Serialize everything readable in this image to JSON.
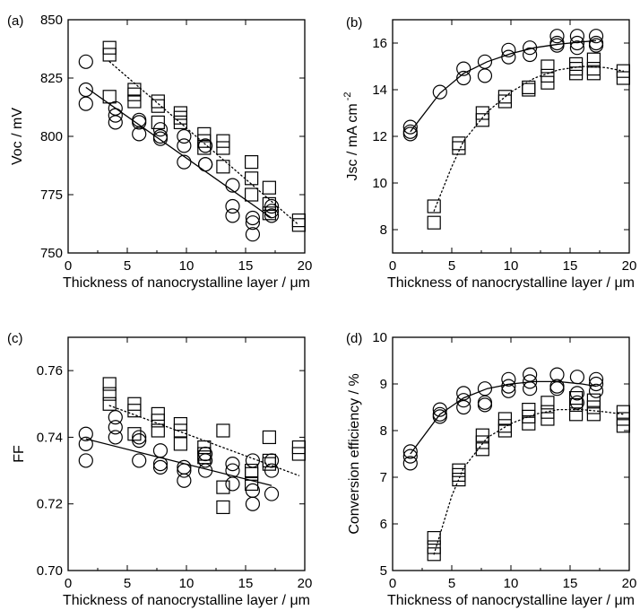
{
  "chart_data": [
    {
      "type": "scatter",
      "panel_label": "(a)",
      "xlabel": "Thickness of nanocrystalline layer / μm",
      "ylabel": "Voc / mV",
      "xlim": [
        0,
        20
      ],
      "ylim": [
        750,
        850
      ],
      "xticks": [
        0,
        5,
        10,
        15,
        20
      ],
      "yticks": [
        750,
        775,
        800,
        825,
        850
      ],
      "grid": false,
      "series": [
        {
          "marker": "circle",
          "points": [
            [
              1.5,
              832
            ],
            [
              1.5,
              820
            ],
            [
              1.5,
              814
            ],
            [
              4,
              812
            ],
            [
              4,
              809
            ],
            [
              4,
              806
            ],
            [
              6,
              807
            ],
            [
              6,
              806
            ],
            [
              6,
              801
            ],
            [
              7.8,
              803
            ],
            [
              7.8,
              800
            ],
            [
              7.8,
              799
            ],
            [
              9.8,
              800
            ],
            [
              9.8,
              796
            ],
            [
              9.8,
              789
            ],
            [
              11.6,
              796
            ],
            [
              11.6,
              788
            ],
            [
              11.6,
              788
            ],
            [
              13.9,
              779
            ],
            [
              13.9,
              770
            ],
            [
              13.9,
              766
            ],
            [
              15.6,
              765
            ],
            [
              15.6,
              763
            ],
            [
              15.6,
              758
            ],
            [
              17.2,
              770
            ],
            [
              17.2,
              768
            ],
            [
              17.2,
              766
            ]
          ]
        },
        {
          "marker": "square",
          "points": [
            [
              3.5,
              838
            ],
            [
              3.5,
              835
            ],
            [
              3.5,
              817
            ],
            [
              5.6,
              820
            ],
            [
              5.6,
              818
            ],
            [
              5.6,
              815
            ],
            [
              7.6,
              815
            ],
            [
              7.6,
              813
            ],
            [
              7.6,
              806
            ],
            [
              9.5,
              810
            ],
            [
              9.5,
              808
            ],
            [
              9.5,
              806
            ],
            [
              11.5,
              801
            ],
            [
              11.5,
              798
            ],
            [
              11.5,
              795
            ],
            [
              13.1,
              798
            ],
            [
              13.1,
              795
            ],
            [
              13.1,
              787
            ],
            [
              15.5,
              789
            ],
            [
              15.5,
              782
            ],
            [
              15.5,
              775
            ],
            [
              17,
              778
            ],
            [
              17,
              771
            ],
            [
              17,
              767
            ],
            [
              19.5,
              764
            ],
            [
              19.5,
              762
            ]
          ]
        }
      ],
      "fits": [
        {
          "style": "solid",
          "x": [
            1.5,
            17.2
          ],
          "y": [
            821,
            765
          ]
        },
        {
          "style": "dotted",
          "x": [
            3.5,
            19.5
          ],
          "y": [
            832,
            762
          ]
        }
      ]
    },
    {
      "type": "scatter",
      "panel_label": "(b)",
      "xlabel": "Thickness of nanocrystalline layer / μm",
      "ylabel": "Jsc / mA cm",
      "ylabel_sup": "-2",
      "xlim": [
        0,
        20
      ],
      "ylim": [
        7,
        17
      ],
      "xticks": [
        0,
        5,
        10,
        15,
        20
      ],
      "yticks": [
        8,
        10,
        12,
        14,
        16
      ],
      "grid": false,
      "series": [
        {
          "marker": "circle",
          "points": [
            [
              1.5,
              12.4
            ],
            [
              1.5,
              12.2
            ],
            [
              1.5,
              12.1
            ],
            [
              4,
              13.9
            ],
            [
              6,
              14.9
            ],
            [
              6,
              14.5
            ],
            [
              7.8,
              15.2
            ],
            [
              7.8,
              14.6
            ],
            [
              9.8,
              15.7
            ],
            [
              9.8,
              15.4
            ],
            [
              11.6,
              15.8
            ],
            [
              11.6,
              15.5
            ],
            [
              13.9,
              16.3
            ],
            [
              13.9,
              16.0
            ],
            [
              13.9,
              15.9
            ],
            [
              15.6,
              16.3
            ],
            [
              15.6,
              16.0
            ],
            [
              15.6,
              15.8
            ],
            [
              17.2,
              16.3
            ],
            [
              17.2,
              16.0
            ],
            [
              17.2,
              15.9
            ]
          ]
        },
        {
          "marker": "square",
          "points": [
            [
              3.5,
              9.0
            ],
            [
              3.5,
              8.3
            ],
            [
              5.6,
              11.7
            ],
            [
              5.6,
              11.5
            ],
            [
              7.6,
              13.0
            ],
            [
              7.6,
              12.7
            ],
            [
              9.5,
              13.7
            ],
            [
              9.5,
              13.5
            ],
            [
              11.5,
              14.1
            ],
            [
              11.5,
              14.0
            ],
            [
              13.1,
              15.0
            ],
            [
              13.1,
              14.6
            ],
            [
              13.1,
              14.3
            ],
            [
              15.5,
              15.1
            ],
            [
              15.5,
              14.9
            ],
            [
              15.5,
              14.7
            ],
            [
              17,
              15.3
            ],
            [
              17,
              14.9
            ],
            [
              17,
              14.7
            ],
            [
              19.5,
              14.8
            ],
            [
              19.5,
              14.5
            ]
          ]
        }
      ],
      "fits": [
        {
          "style": "solid",
          "x": [
            1.5,
            4,
            6,
            8,
            10,
            12,
            14,
            16,
            17.2
          ],
          "y": [
            12.2,
            13.85,
            14.7,
            15.2,
            15.55,
            15.8,
            15.95,
            16.05,
            16.1
          ]
        },
        {
          "style": "dotted",
          "x": [
            3.5,
            5,
            6,
            8,
            10,
            12,
            14,
            16,
            18,
            19.5
          ],
          "y": [
            8.8,
            10.7,
            11.8,
            13.05,
            13.9,
            14.5,
            14.85,
            15.0,
            14.95,
            14.8
          ]
        }
      ]
    },
    {
      "type": "scatter",
      "panel_label": "(c)",
      "xlabel": "Thickness of nanocrystalline layer / μm",
      "ylabel": "FF",
      "xlim": [
        0,
        20
      ],
      "ylim": [
        0.7,
        0.77
      ],
      "xticks": [
        0,
        5,
        10,
        15,
        20
      ],
      "yticks": [
        0.7,
        0.72,
        0.74,
        0.76
      ],
      "ytick_labels": [
        "0.70",
        "0.72",
        "0.74",
        "0.76"
      ],
      "grid": false,
      "series": [
        {
          "marker": "circle",
          "points": [
            [
              1.5,
              0.741
            ],
            [
              1.5,
              0.738
            ],
            [
              1.5,
              0.733
            ],
            [
              4,
              0.746
            ],
            [
              4,
              0.743
            ],
            [
              4,
              0.74
            ],
            [
              6,
              0.74
            ],
            [
              6,
              0.739
            ],
            [
              6,
              0.733
            ],
            [
              7.8,
              0.736
            ],
            [
              7.8,
              0.732
            ],
            [
              7.8,
              0.731
            ],
            [
              9.8,
              0.731
            ],
            [
              9.8,
              0.73
            ],
            [
              9.8,
              0.727
            ],
            [
              11.6,
              0.735
            ],
            [
              11.6,
              0.733
            ],
            [
              11.6,
              0.73
            ],
            [
              13.9,
              0.732
            ],
            [
              13.9,
              0.73
            ],
            [
              13.9,
              0.726
            ],
            [
              15.6,
              0.733
            ],
            [
              15.6,
              0.724
            ],
            [
              15.6,
              0.72
            ],
            [
              17.2,
              0.733
            ],
            [
              17.2,
              0.73
            ],
            [
              17.2,
              0.723
            ]
          ]
        },
        {
          "marker": "square",
          "points": [
            [
              3.5,
              0.756
            ],
            [
              3.5,
              0.753
            ],
            [
              3.5,
              0.75
            ],
            [
              5.6,
              0.75
            ],
            [
              5.6,
              0.748
            ],
            [
              5.6,
              0.741
            ],
            [
              7.6,
              0.747
            ],
            [
              7.6,
              0.745
            ],
            [
              7.6,
              0.742
            ],
            [
              9.5,
              0.744
            ],
            [
              9.5,
              0.742
            ],
            [
              9.5,
              0.738
            ],
            [
              11.5,
              0.737
            ],
            [
              11.5,
              0.735
            ],
            [
              11.5,
              0.734
            ],
            [
              13.1,
              0.742
            ],
            [
              13.1,
              0.725
            ],
            [
              13.1,
              0.719
            ],
            [
              15.5,
              0.73
            ],
            [
              15.5,
              0.729
            ],
            [
              15.5,
              0.726
            ],
            [
              17,
              0.74
            ],
            [
              17,
              0.733
            ],
            [
              17,
              0.732
            ],
            [
              19.5,
              0.737
            ],
            [
              19.5,
              0.735
            ]
          ]
        }
      ],
      "fits": [
        {
          "style": "solid",
          "x": [
            1.5,
            17.2
          ],
          "y": [
            0.7395,
            0.7255
          ]
        },
        {
          "style": "dotted",
          "x": [
            3.5,
            19.5
          ],
          "y": [
            0.7495,
            0.7285
          ]
        }
      ]
    },
    {
      "type": "scatter",
      "panel_label": "(d)",
      "xlabel": "Thickness of nanocrystalline layer / μm",
      "ylabel": "Conversion efficiency / %",
      "xlim": [
        0,
        20
      ],
      "ylim": [
        5,
        10
      ],
      "xticks": [
        0,
        5,
        10,
        15,
        20
      ],
      "yticks": [
        5,
        6,
        7,
        8,
        9,
        10
      ],
      "grid": false,
      "series": [
        {
          "marker": "circle",
          "points": [
            [
              1.5,
              7.55
            ],
            [
              1.5,
              7.45
            ],
            [
              1.5,
              7.3
            ],
            [
              4,
              8.45
            ],
            [
              4,
              8.35
            ],
            [
              4,
              8.3
            ],
            [
              6,
              8.8
            ],
            [
              6,
              8.65
            ],
            [
              6,
              8.5
            ],
            [
              7.8,
              8.9
            ],
            [
              7.8,
              8.6
            ],
            [
              7.8,
              8.55
            ],
            [
              9.8,
              9.1
            ],
            [
              9.8,
              8.95
            ],
            [
              9.8,
              8.85
            ],
            [
              11.6,
              9.2
            ],
            [
              11.6,
              9.05
            ],
            [
              11.6,
              8.9
            ],
            [
              13.9,
              9.2
            ],
            [
              13.9,
              8.95
            ],
            [
              13.9,
              8.9
            ],
            [
              15.6,
              9.15
            ],
            [
              15.6,
              8.8
            ],
            [
              15.6,
              8.6
            ],
            [
              17.2,
              9.1
            ],
            [
              17.2,
              9.0
            ],
            [
              17.2,
              8.85
            ]
          ]
        },
        {
          "marker": "square",
          "points": [
            [
              3.5,
              5.7
            ],
            [
              3.5,
              5.5
            ],
            [
              3.5,
              5.35
            ],
            [
              5.6,
              7.15
            ],
            [
              5.6,
              7.05
            ],
            [
              5.6,
              6.95
            ],
            [
              7.6,
              7.9
            ],
            [
              7.6,
              7.75
            ],
            [
              7.6,
              7.6
            ],
            [
              9.5,
              8.25
            ],
            [
              9.5,
              8.1
            ],
            [
              9.5,
              8.0
            ],
            [
              11.5,
              8.45
            ],
            [
              11.5,
              8.3
            ],
            [
              11.5,
              8.15
            ],
            [
              13.1,
              8.6
            ],
            [
              13.1,
              8.4
            ],
            [
              13.1,
              8.25
            ],
            [
              15.5,
              8.7
            ],
            [
              15.5,
              8.55
            ],
            [
              15.5,
              8.35
            ],
            [
              17,
              8.65
            ],
            [
              17,
              8.5
            ],
            [
              17,
              8.35
            ],
            [
              19.5,
              8.4
            ],
            [
              19.5,
              8.25
            ],
            [
              19.5,
              8.1
            ]
          ]
        }
      ],
      "fits": [
        {
          "style": "solid",
          "x": [
            1.5,
            4,
            6,
            8,
            10,
            12,
            14,
            16,
            17.2
          ],
          "y": [
            7.5,
            8.35,
            8.7,
            8.9,
            9.0,
            9.05,
            9.05,
            9.0,
            8.95
          ]
        },
        {
          "style": "dotted",
          "x": [
            3.5,
            5,
            6,
            8,
            10,
            12,
            14,
            16,
            18,
            19.5
          ],
          "y": [
            5.35,
            6.6,
            7.2,
            7.85,
            8.15,
            8.35,
            8.45,
            8.45,
            8.4,
            8.35
          ]
        }
      ]
    }
  ]
}
